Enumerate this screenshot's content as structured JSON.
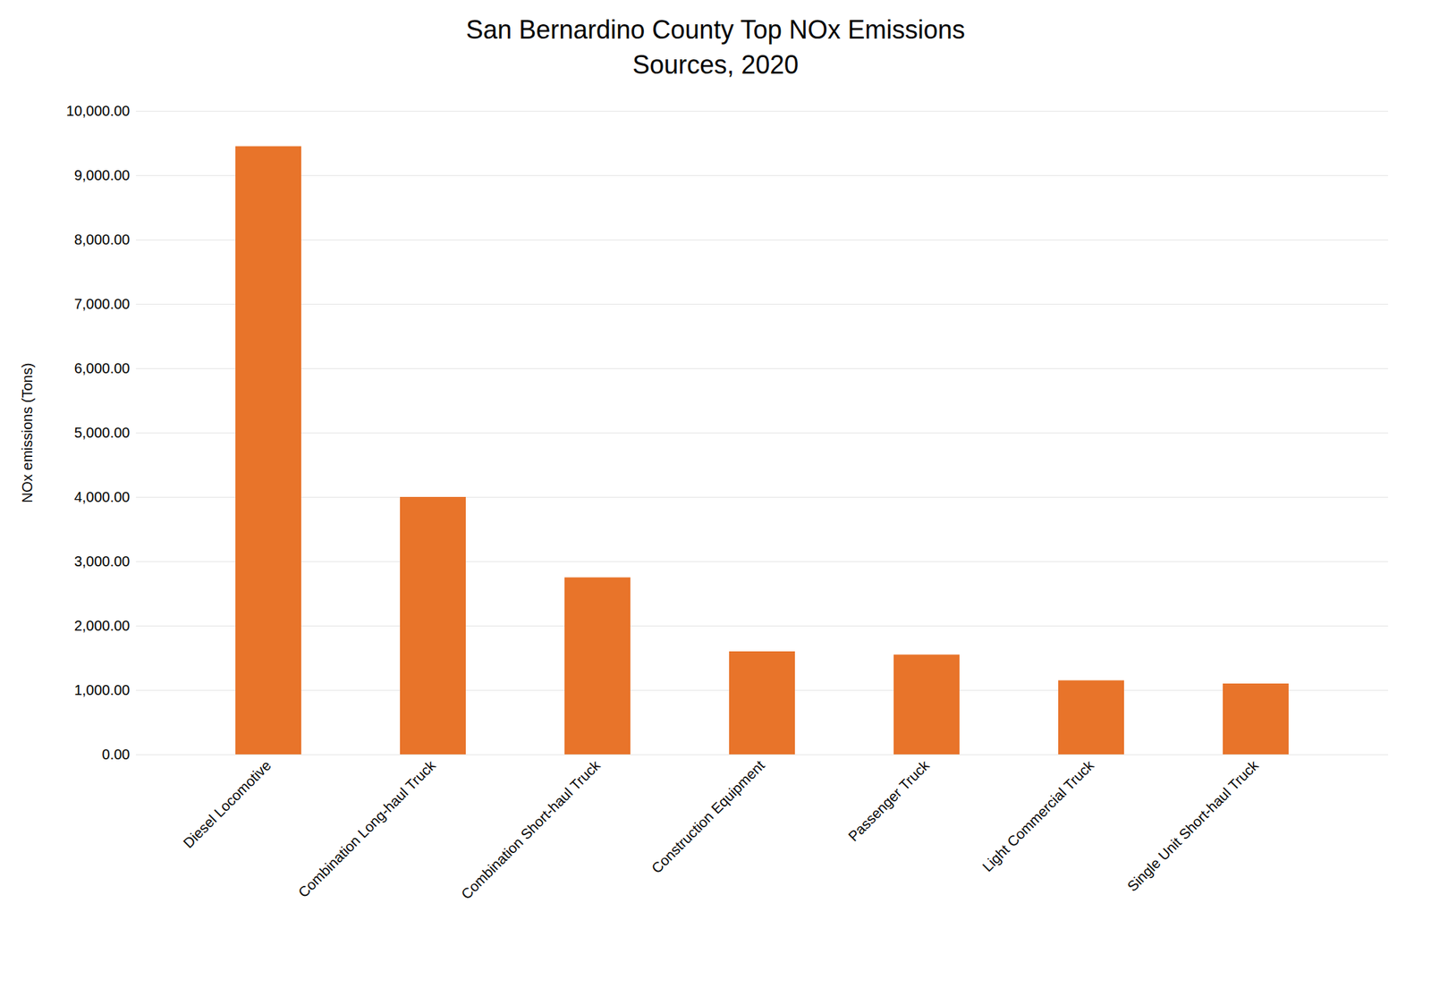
{
  "chart_data": {
    "type": "bar",
    "title": "San Bernardino County Top NOx Emissions\nSources, 2020",
    "ylabel": "NOx emissions (Tons)",
    "categories": [
      "Diesel Locomotive",
      "Combination Long-haul Truck",
      "Combination Short-haul Truck",
      "Construction Equipment",
      "Passenger Truck",
      "Light Commercial Truck",
      "Single Unit Short-haul Truck"
    ],
    "values": [
      9450,
      4000,
      2750,
      1600,
      1550,
      1150,
      1100
    ],
    "color": "#E8742A",
    "ylim": [
      0,
      10000
    ],
    "yticks": [
      {
        "value": 0,
        "label": "0.00"
      },
      {
        "value": 1000,
        "label": "1,000.00"
      },
      {
        "value": 2000,
        "label": "2,000.00"
      },
      {
        "value": 3000,
        "label": "3,000.00"
      },
      {
        "value": 4000,
        "label": "4,000.00"
      },
      {
        "value": 5000,
        "label": "5,000.00"
      },
      {
        "value": 6000,
        "label": "6,000.00"
      },
      {
        "value": 7000,
        "label": "7,000.00"
      },
      {
        "value": 8000,
        "label": "8,000.00"
      },
      {
        "value": 9000,
        "label": "9,000.00"
      },
      {
        "value": 10000,
        "label": "10,000.00"
      }
    ],
    "grid": true
  }
}
